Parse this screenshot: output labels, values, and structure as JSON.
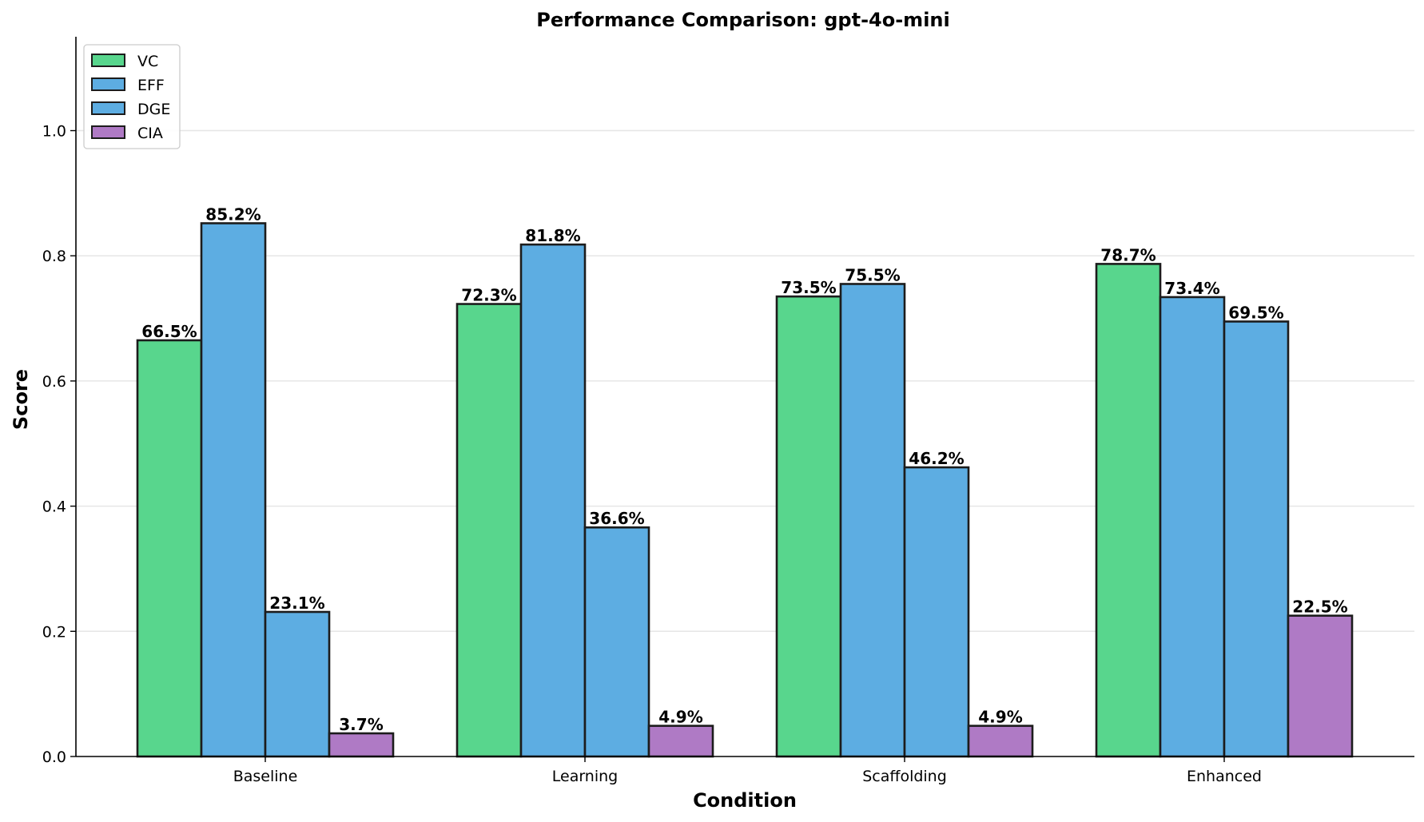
{
  "chart_data": {
    "type": "bar",
    "title": "Performance Comparison: gpt-4o-mini",
    "xlabel": "Condition",
    "ylabel": "Score",
    "categories": [
      "Baseline",
      "Learning",
      "Scaffolding",
      "Enhanced"
    ],
    "ylim": [
      0,
      1.15
    ],
    "yticks": [
      "0.0",
      "0.2",
      "0.4",
      "0.6",
      "0.8",
      "1.0"
    ],
    "ytick_values": [
      0,
      0.2,
      0.4,
      0.6,
      0.8,
      1.0
    ],
    "grid": "horizontal",
    "legend_position": "top-left",
    "series": [
      {
        "name": "VC",
        "color": "#58d68d",
        "values": [
          0.665,
          0.723,
          0.735,
          0.787
        ],
        "labels": [
          "66.5%",
          "72.3%",
          "73.5%",
          "78.7%"
        ]
      },
      {
        "name": "EFF",
        "color": "#5dade2",
        "values": [
          0.852,
          0.818,
          0.755,
          0.734
        ],
        "labels": [
          "85.2%",
          "81.8%",
          "75.5%",
          "73.4%"
        ]
      },
      {
        "name": "DGE",
        "color": "#5dade2",
        "values": [
          0.231,
          0.366,
          0.462,
          0.695
        ],
        "labels": [
          "23.1%",
          "36.6%",
          "46.2%",
          "69.5%"
        ]
      },
      {
        "name": "CIA",
        "color": "#af7ac5",
        "values": [
          0.037,
          0.049,
          0.049,
          0.225
        ],
        "labels": [
          "3.7%",
          "4.9%",
          "4.9%",
          "22.5%"
        ]
      }
    ]
  }
}
